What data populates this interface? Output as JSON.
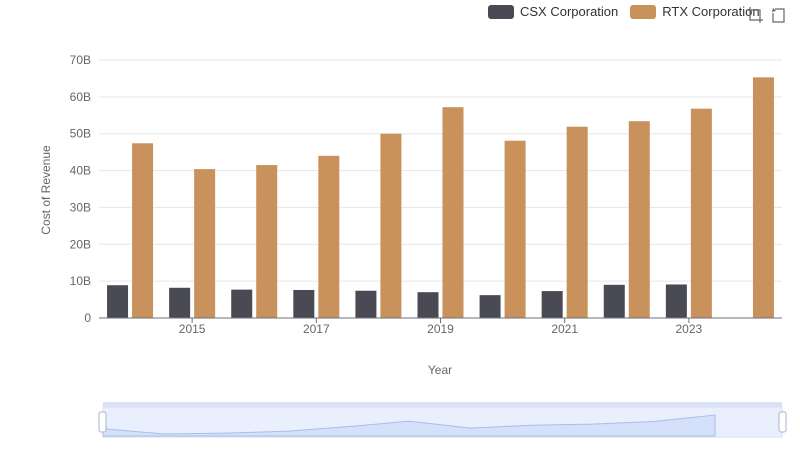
{
  "legend": [
    {
      "name": "CSX Corporation",
      "color": "#4a4a55"
    },
    {
      "name": "RTX Corporation",
      "color": "#c9915c"
    }
  ],
  "toolbox": {
    "icons": [
      "zoom-icon",
      "restore-icon"
    ]
  },
  "chart_data": {
    "type": "bar",
    "xlabel": "Year",
    "ylabel": "Cost of Revenue",
    "ylim": [
      0,
      70000000000
    ],
    "yticks": [
      "0",
      "10B",
      "20B",
      "30B",
      "40B",
      "50B",
      "60B",
      "70B"
    ],
    "x": [
      2014,
      2015,
      2016,
      2017,
      2018,
      2019,
      2020,
      2021,
      2022,
      2023,
      2024
    ],
    "xtick_labels": [
      "2015",
      "2017",
      "2019",
      "2021",
      "2023"
    ],
    "series": [
      {
        "name": "CSX Corporation",
        "color": "#4a4a55",
        "values": [
          8900000000.0,
          8200000000.0,
          7700000000.0,
          7600000000.0,
          7400000000.0,
          7000000000.0,
          6200000000.0,
          7300000000.0,
          9000000000.0,
          9100000000.0,
          null
        ]
      },
      {
        "name": "RTX Corporation",
        "color": "#c9915c",
        "values": [
          47400000000.0,
          40400000000.0,
          41500000000.0,
          44000000000.0,
          50000000000.0,
          57200000000.0,
          48100000000.0,
          51900000000.0,
          53400000000.0,
          56800000000.0,
          65300000000.0
        ]
      }
    ],
    "grid": true,
    "legend_position": "top-right"
  },
  "overview": {
    "series_values": [
      47400000000.0,
      40400000000.0,
      41500000000.0,
      44000000000.0,
      50000000000.0,
      57200000000.0,
      48100000000.0,
      51900000000.0,
      53400000000.0,
      56800000000.0,
      65300000000.0
    ]
  }
}
